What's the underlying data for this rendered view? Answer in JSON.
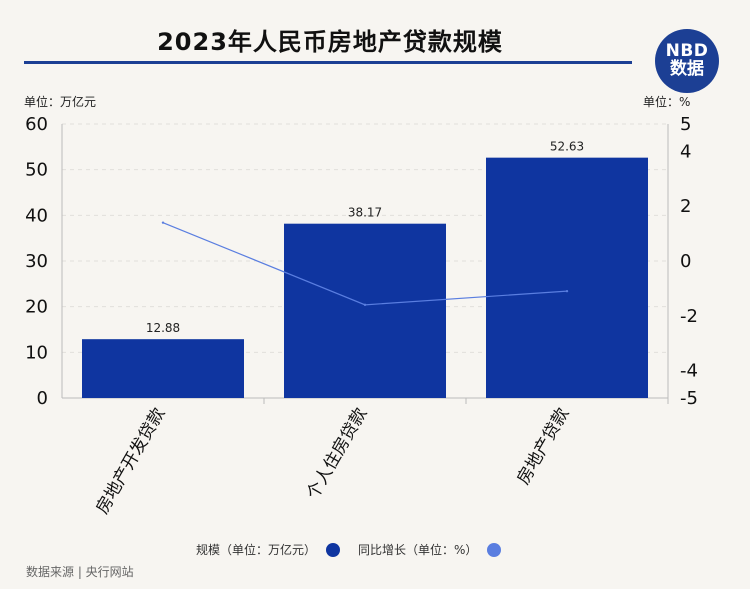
{
  "header": {
    "title": "2023年人民币房地产贷款规模",
    "logo_line1": "NBD",
    "logo_line2": "数据"
  },
  "units": {
    "left": "单位：万亿元",
    "right": "单位：%"
  },
  "legend": {
    "bar_label": "规模（单位：万亿元）",
    "line_label": "同比增长（单位：%）"
  },
  "footer": {
    "source": "数据来源 | 央行网站"
  },
  "colors": {
    "bar": "#0f35a0",
    "line": "#5a7ee0",
    "axis": "#bbbbbb",
    "grid": "#e2e0dc"
  },
  "chart_data": {
    "type": "bar",
    "title": "2023年人民币房地产贷款规模",
    "categories": [
      "房地产开发贷款",
      "个人住房贷款",
      "房地产贷款"
    ],
    "series": [
      {
        "name": "规模（单位：万亿元）",
        "type": "bar",
        "axis": "left",
        "values": [
          12.88,
          38.17,
          52.63
        ]
      },
      {
        "name": "同比增长（单位：%）",
        "type": "line",
        "axis": "right",
        "values": [
          1.4,
          -1.6,
          -1.1
        ]
      }
    ],
    "data_labels": [
      "12.88",
      "38.17",
      "52.63"
    ],
    "ylim_left": [
      0,
      60
    ],
    "yticks_left": [
      "0",
      "10",
      "20",
      "30",
      "40",
      "50",
      "60"
    ],
    "ylim_right": [
      -5,
      5
    ],
    "yticks_right": [
      "-5",
      "-4",
      "-2",
      "0",
      "2",
      "4",
      "5"
    ],
    "yticks_right_values": [
      -5,
      -4,
      -2,
      0,
      2,
      4,
      5
    ],
    "grid": true,
    "legend_position": "bottom"
  }
}
